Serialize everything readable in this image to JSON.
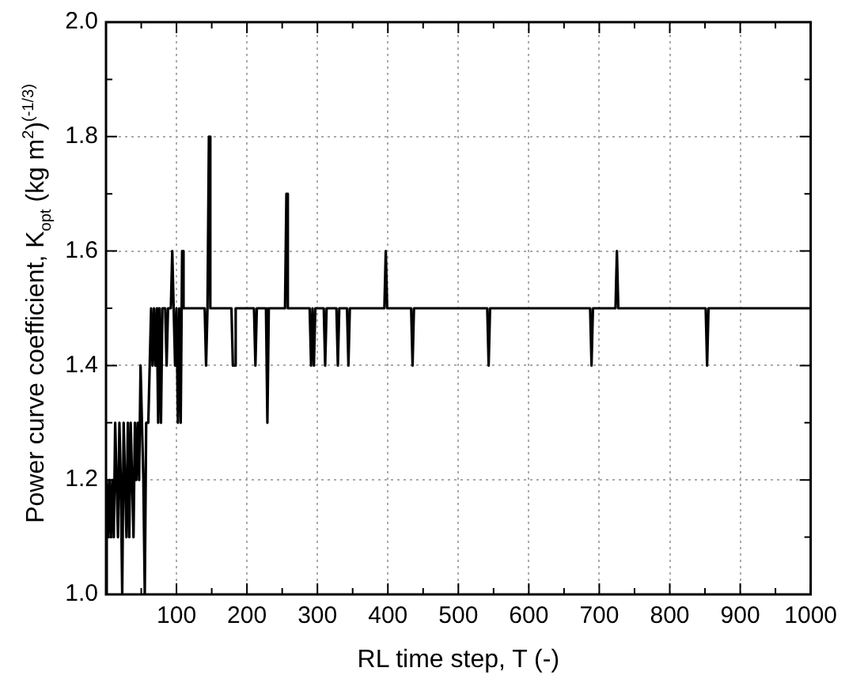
{
  "chart_data": {
    "type": "line",
    "xlabel": "RL time step, T (-)",
    "ylabel": "Power curve coefficient, K$_{opt}$ (kg m$^{2}$)$^{(-1/3)}$",
    "xlim": [
      0,
      1000
    ],
    "ylim": [
      1.0,
      2.0
    ],
    "xticks": [
      {
        "value": 50,
        "label": null
      },
      100,
      {
        "value": 150,
        "label": null
      },
      200,
      {
        "value": 250,
        "label": null
      },
      300,
      {
        "value": 350,
        "label": null
      },
      400,
      {
        "value": 450,
        "label": null
      },
      500,
      {
        "value": 550,
        "label": null
      },
      600,
      {
        "value": 650,
        "label": null
      },
      700,
      {
        "value": 750,
        "label": null
      },
      800,
      {
        "value": 850,
        "label": null
      },
      900,
      {
        "value": 950,
        "label": null
      },
      1000
    ],
    "yticks": [
      {
        "value": 1,
        "label": "1.0"
      },
      {
        "value": 1.1,
        "label": null
      },
      {
        "value": 1.2,
        "label": "1.2"
      },
      {
        "value": 1.3,
        "label": null
      },
      {
        "value": 1.4,
        "label": "1.4"
      },
      {
        "value": 1.5,
        "label": null
      },
      {
        "value": 1.6,
        "label": "1.6"
      },
      {
        "value": 1.7,
        "label": null
      },
      {
        "value": 1.8,
        "label": "1.8"
      },
      {
        "value": 1.9,
        "label": null
      },
      {
        "value": 2,
        "label": "2.0"
      }
    ],
    "grid": true,
    "legend": false,
    "line_style": "solid",
    "x": [
      0,
      1,
      3,
      5,
      7,
      9,
      11,
      13,
      15,
      17,
      19,
      21,
      23,
      25,
      27,
      29,
      31,
      33,
      35,
      37,
      39,
      41,
      43,
      45,
      47,
      49,
      51,
      53,
      55,
      57,
      60,
      62,
      64,
      66,
      68,
      70,
      72,
      74,
      76,
      78,
      80,
      84,
      86,
      88,
      92,
      94,
      96,
      98,
      100,
      102,
      104,
      106,
      108,
      110,
      140,
      142,
      144,
      146,
      148,
      178,
      180,
      182,
      184,
      210,
      212,
      214,
      227,
      229,
      231,
      254,
      256,
      258,
      289,
      291,
      293,
      295,
      297,
      309,
      311,
      313,
      327,
      329,
      331,
      342,
      344,
      346,
      395,
      397,
      399,
      433,
      435,
      437,
      541,
      543,
      545,
      687,
      689,
      691,
      723,
      725,
      727,
      851,
      853,
      855,
      1000
    ],
    "series": [
      {
        "color": "#000000",
        "values": [
          1.0,
          1.2,
          1.1,
          1.2,
          1.1,
          1.2,
          1.1,
          1.3,
          1.2,
          1.1,
          1.3,
          1.2,
          1.0,
          1.3,
          1.2,
          1.1,
          1.3,
          1.1,
          1.3,
          1.2,
          1.1,
          1.3,
          1.2,
          1.3,
          1.2,
          1.4,
          1.3,
          1.2,
          1.0,
          1.3,
          1.3,
          1.4,
          1.5,
          1.4,
          1.5,
          1.4,
          1.5,
          1.3,
          1.5,
          1.3,
          1.5,
          1.5,
          1.4,
          1.5,
          1.5,
          1.6,
          1.5,
          1.4,
          1.5,
          1.3,
          1.5,
          1.3,
          1.6,
          1.5,
          1.5,
          1.4,
          1.5,
          1.8,
          1.5,
          1.5,
          1.4,
          1.4,
          1.5,
          1.5,
          1.4,
          1.5,
          1.5,
          1.3,
          1.5,
          1.5,
          1.7,
          1.5,
          1.5,
          1.4,
          1.5,
          1.4,
          1.5,
          1.5,
          1.4,
          1.5,
          1.5,
          1.4,
          1.5,
          1.5,
          1.4,
          1.5,
          1.5,
          1.6,
          1.5,
          1.5,
          1.4,
          1.5,
          1.5,
          1.4,
          1.5,
          1.5,
          1.4,
          1.5,
          1.5,
          1.6,
          1.5,
          1.5,
          1.4,
          1.5,
          1.5
        ]
      }
    ]
  }
}
